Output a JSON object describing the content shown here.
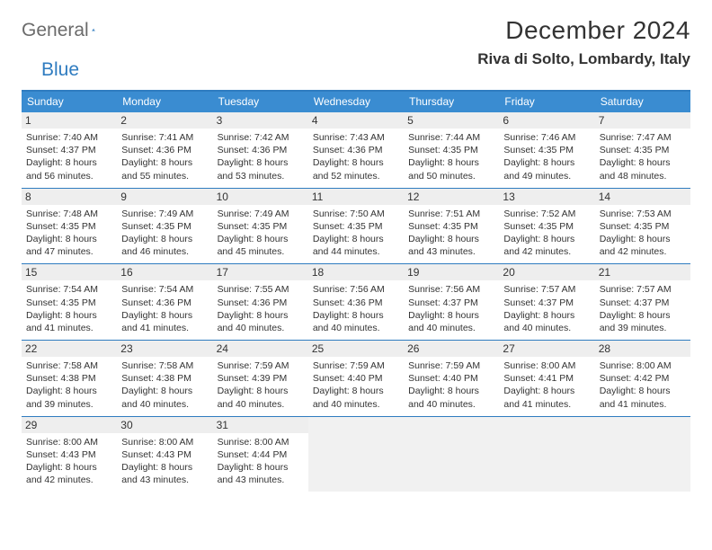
{
  "brand": {
    "part1": "General",
    "part2": "Blue"
  },
  "title": "December 2024",
  "location": "Riva di Solto, Lombardy, Italy",
  "colors": {
    "header_bar": "#3a8cd1",
    "rule": "#2f7cc0",
    "daynum_bg": "#eeeeee",
    "blank_bg": "#f1f1f1",
    "text": "#333333",
    "logo_gray": "#6b6b6b",
    "logo_blue": "#2f7cc0"
  },
  "days_of_week": [
    "Sunday",
    "Monday",
    "Tuesday",
    "Wednesday",
    "Thursday",
    "Friday",
    "Saturday"
  ],
  "weeks": [
    [
      {
        "n": "1",
        "sr": "Sunrise: 7:40 AM",
        "ss": "Sunset: 4:37 PM",
        "d1": "Daylight: 8 hours",
        "d2": "and 56 minutes."
      },
      {
        "n": "2",
        "sr": "Sunrise: 7:41 AM",
        "ss": "Sunset: 4:36 PM",
        "d1": "Daylight: 8 hours",
        "d2": "and 55 minutes."
      },
      {
        "n": "3",
        "sr": "Sunrise: 7:42 AM",
        "ss": "Sunset: 4:36 PM",
        "d1": "Daylight: 8 hours",
        "d2": "and 53 minutes."
      },
      {
        "n": "4",
        "sr": "Sunrise: 7:43 AM",
        "ss": "Sunset: 4:36 PM",
        "d1": "Daylight: 8 hours",
        "d2": "and 52 minutes."
      },
      {
        "n": "5",
        "sr": "Sunrise: 7:44 AM",
        "ss": "Sunset: 4:35 PM",
        "d1": "Daylight: 8 hours",
        "d2": "and 50 minutes."
      },
      {
        "n": "6",
        "sr": "Sunrise: 7:46 AM",
        "ss": "Sunset: 4:35 PM",
        "d1": "Daylight: 8 hours",
        "d2": "and 49 minutes."
      },
      {
        "n": "7",
        "sr": "Sunrise: 7:47 AM",
        "ss": "Sunset: 4:35 PM",
        "d1": "Daylight: 8 hours",
        "d2": "and 48 minutes."
      }
    ],
    [
      {
        "n": "8",
        "sr": "Sunrise: 7:48 AM",
        "ss": "Sunset: 4:35 PM",
        "d1": "Daylight: 8 hours",
        "d2": "and 47 minutes."
      },
      {
        "n": "9",
        "sr": "Sunrise: 7:49 AM",
        "ss": "Sunset: 4:35 PM",
        "d1": "Daylight: 8 hours",
        "d2": "and 46 minutes."
      },
      {
        "n": "10",
        "sr": "Sunrise: 7:49 AM",
        "ss": "Sunset: 4:35 PM",
        "d1": "Daylight: 8 hours",
        "d2": "and 45 minutes."
      },
      {
        "n": "11",
        "sr": "Sunrise: 7:50 AM",
        "ss": "Sunset: 4:35 PM",
        "d1": "Daylight: 8 hours",
        "d2": "and 44 minutes."
      },
      {
        "n": "12",
        "sr": "Sunrise: 7:51 AM",
        "ss": "Sunset: 4:35 PM",
        "d1": "Daylight: 8 hours",
        "d2": "and 43 minutes."
      },
      {
        "n": "13",
        "sr": "Sunrise: 7:52 AM",
        "ss": "Sunset: 4:35 PM",
        "d1": "Daylight: 8 hours",
        "d2": "and 42 minutes."
      },
      {
        "n": "14",
        "sr": "Sunrise: 7:53 AM",
        "ss": "Sunset: 4:35 PM",
        "d1": "Daylight: 8 hours",
        "d2": "and 42 minutes."
      }
    ],
    [
      {
        "n": "15",
        "sr": "Sunrise: 7:54 AM",
        "ss": "Sunset: 4:35 PM",
        "d1": "Daylight: 8 hours",
        "d2": "and 41 minutes."
      },
      {
        "n": "16",
        "sr": "Sunrise: 7:54 AM",
        "ss": "Sunset: 4:36 PM",
        "d1": "Daylight: 8 hours",
        "d2": "and 41 minutes."
      },
      {
        "n": "17",
        "sr": "Sunrise: 7:55 AM",
        "ss": "Sunset: 4:36 PM",
        "d1": "Daylight: 8 hours",
        "d2": "and 40 minutes."
      },
      {
        "n": "18",
        "sr": "Sunrise: 7:56 AM",
        "ss": "Sunset: 4:36 PM",
        "d1": "Daylight: 8 hours",
        "d2": "and 40 minutes."
      },
      {
        "n": "19",
        "sr": "Sunrise: 7:56 AM",
        "ss": "Sunset: 4:37 PM",
        "d1": "Daylight: 8 hours",
        "d2": "and 40 minutes."
      },
      {
        "n": "20",
        "sr": "Sunrise: 7:57 AM",
        "ss": "Sunset: 4:37 PM",
        "d1": "Daylight: 8 hours",
        "d2": "and 40 minutes."
      },
      {
        "n": "21",
        "sr": "Sunrise: 7:57 AM",
        "ss": "Sunset: 4:37 PM",
        "d1": "Daylight: 8 hours",
        "d2": "and 39 minutes."
      }
    ],
    [
      {
        "n": "22",
        "sr": "Sunrise: 7:58 AM",
        "ss": "Sunset: 4:38 PM",
        "d1": "Daylight: 8 hours",
        "d2": "and 39 minutes."
      },
      {
        "n": "23",
        "sr": "Sunrise: 7:58 AM",
        "ss": "Sunset: 4:38 PM",
        "d1": "Daylight: 8 hours",
        "d2": "and 40 minutes."
      },
      {
        "n": "24",
        "sr": "Sunrise: 7:59 AM",
        "ss": "Sunset: 4:39 PM",
        "d1": "Daylight: 8 hours",
        "d2": "and 40 minutes."
      },
      {
        "n": "25",
        "sr": "Sunrise: 7:59 AM",
        "ss": "Sunset: 4:40 PM",
        "d1": "Daylight: 8 hours",
        "d2": "and 40 minutes."
      },
      {
        "n": "26",
        "sr": "Sunrise: 7:59 AM",
        "ss": "Sunset: 4:40 PM",
        "d1": "Daylight: 8 hours",
        "d2": "and 40 minutes."
      },
      {
        "n": "27",
        "sr": "Sunrise: 8:00 AM",
        "ss": "Sunset: 4:41 PM",
        "d1": "Daylight: 8 hours",
        "d2": "and 41 minutes."
      },
      {
        "n": "28",
        "sr": "Sunrise: 8:00 AM",
        "ss": "Sunset: 4:42 PM",
        "d1": "Daylight: 8 hours",
        "d2": "and 41 minutes."
      }
    ],
    [
      {
        "n": "29",
        "sr": "Sunrise: 8:00 AM",
        "ss": "Sunset: 4:43 PM",
        "d1": "Daylight: 8 hours",
        "d2": "and 42 minutes."
      },
      {
        "n": "30",
        "sr": "Sunrise: 8:00 AM",
        "ss": "Sunset: 4:43 PM",
        "d1": "Daylight: 8 hours",
        "d2": "and 43 minutes."
      },
      {
        "n": "31",
        "sr": "Sunrise: 8:00 AM",
        "ss": "Sunset: 4:44 PM",
        "d1": "Daylight: 8 hours",
        "d2": "and 43 minutes."
      },
      null,
      null,
      null,
      null
    ]
  ]
}
